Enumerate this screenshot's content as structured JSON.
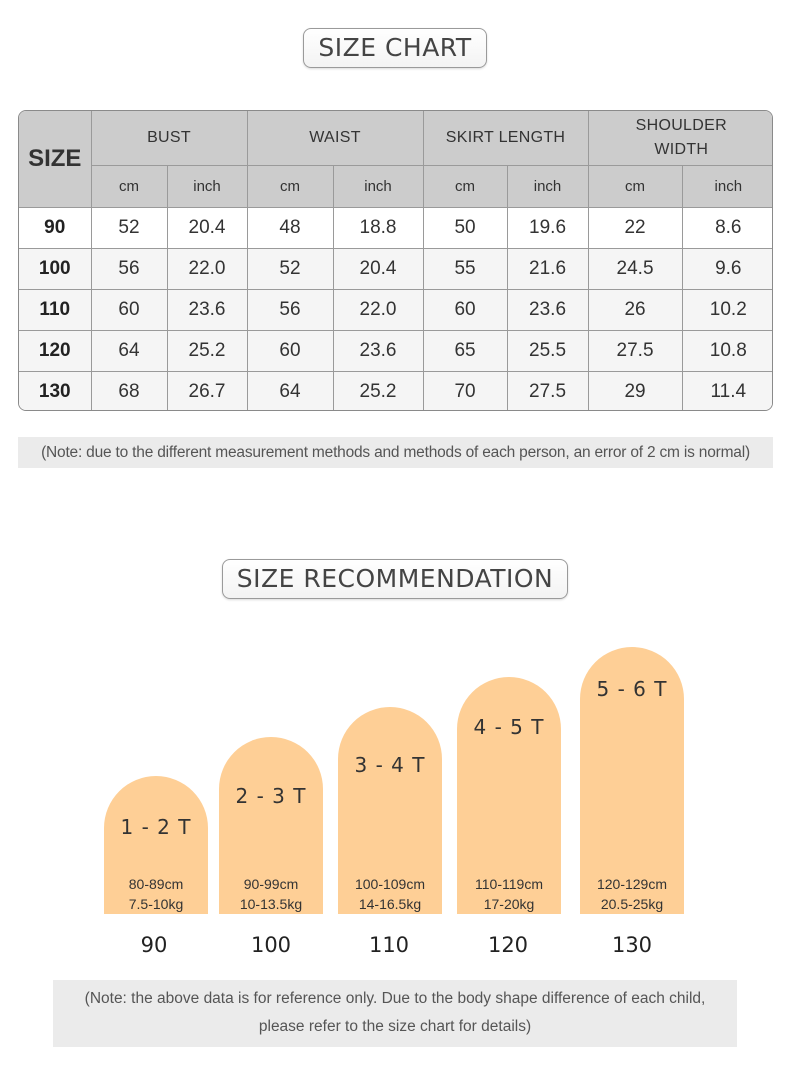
{
  "size_chart": {
    "title": "SIZE CHART",
    "size_header": "SIZE",
    "groups": [
      "BUST",
      "WAIST",
      "SKIRT LENGTH",
      "SHOULDER WIDTH"
    ],
    "units": [
      "cm",
      "inch",
      "cm",
      "inch",
      "cm",
      "inch",
      "cm",
      "inch"
    ],
    "rows": [
      {
        "size": "90",
        "values": [
          "52",
          "20.4",
          "48",
          "18.8",
          "50",
          "19.6",
          "22",
          "8.6"
        ]
      },
      {
        "size": "100",
        "values": [
          "56",
          "22.0",
          "52",
          "20.4",
          "55",
          "21.6",
          "24.5",
          "9.6"
        ]
      },
      {
        "size": "110",
        "values": [
          "60",
          "23.6",
          "56",
          "22.0",
          "60",
          "23.6",
          "26",
          "10.2"
        ]
      },
      {
        "size": "120",
        "values": [
          "64",
          "25.2",
          "60",
          "23.6",
          "65",
          "25.5",
          "27.5",
          "10.8"
        ]
      },
      {
        "size": "130",
        "values": [
          "68",
          "26.7",
          "64",
          "25.2",
          "70",
          "27.5",
          "29",
          "11.4"
        ]
      }
    ],
    "note": "(Note: due to the different measurement methods and methods of each person, an error of 2 cm is normal)"
  },
  "recommendation": {
    "title": "SIZE RECOMMENDATION",
    "items": [
      {
        "age": "1 - 2 T",
        "height": "80-89cm",
        "weight": "7.5-10kg",
        "size": "90"
      },
      {
        "age": "2 - 3 T",
        "height": "90-99cm",
        "weight": "10-13.5kg",
        "size": "100"
      },
      {
        "age": "3 - 4 T",
        "height": "100-109cm",
        "weight": "14-16.5kg",
        "size": "110"
      },
      {
        "age": "4 - 5 T",
        "height": "110-119cm",
        "weight": "17-20kg",
        "size": "120"
      },
      {
        "age": "5 - 6 T",
        "height": "120-129cm",
        "weight": "20.5-25kg",
        "size": "130"
      }
    ],
    "note_line1": "(Note: the above data is for reference only. Due to the body shape difference of each child,",
    "note_line2": "please refer to the size chart for details)"
  },
  "colors": {
    "pill": "#fecf96",
    "header_bg": "#cccccc",
    "note_bg": "#ebebeb"
  }
}
